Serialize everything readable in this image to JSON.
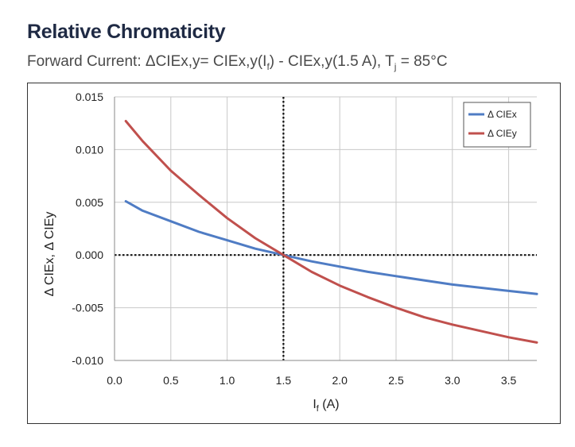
{
  "title": "Relative Chromaticity",
  "subtitle": {
    "part1": "Forward Current: ΔCIEx,y= CIEx,y(I",
    "sub1": "f",
    "part2": ") - CIEx,y(1.5 A), T",
    "sub2": "j",
    "part3": " = 85°C"
  },
  "chart_data": {
    "type": "line",
    "xlabel_main": "I",
    "xlabel_sub": "f",
    "xlabel_rest": " (A)",
    "ylabel": "Δ CIEx, Δ CIEy",
    "xlim": [
      0,
      3.75
    ],
    "ylim": [
      -0.01,
      0.015
    ],
    "xticks": [
      "0.0",
      "0.5",
      "1.0",
      "1.5",
      "2.0",
      "2.5",
      "3.0",
      "3.5"
    ],
    "yticks": [
      "0.015",
      "0.010",
      "0.005",
      "0.000",
      "-0.005",
      "-0.010"
    ],
    "grid": true,
    "legend_position": "top-right",
    "reference_lines": {
      "x": 1.5,
      "y": 0
    },
    "series": [
      {
        "name": "Δ CIEx",
        "color": "#4f7cc4",
        "x": [
          0.1,
          0.25,
          0.5,
          0.75,
          1.0,
          1.25,
          1.5,
          1.75,
          2.0,
          2.25,
          2.5,
          2.75,
          3.0,
          3.25,
          3.5,
          3.75
        ],
        "y": [
          0.0051,
          0.0042,
          0.0032,
          0.0022,
          0.0014,
          0.0006,
          0.0,
          -0.0006,
          -0.0011,
          -0.0016,
          -0.002,
          -0.0024,
          -0.0028,
          -0.0031,
          -0.0034,
          -0.0037
        ]
      },
      {
        "name": "Δ CIEy",
        "color": "#c0504d",
        "x": [
          0.1,
          0.25,
          0.5,
          0.75,
          1.0,
          1.25,
          1.5,
          1.75,
          2.0,
          2.25,
          2.5,
          2.75,
          3.0,
          3.25,
          3.5,
          3.75
        ],
        "y": [
          0.0127,
          0.0108,
          0.008,
          0.0057,
          0.0035,
          0.0016,
          0.0,
          -0.0016,
          -0.0029,
          -0.004,
          -0.005,
          -0.0059,
          -0.0066,
          -0.0072,
          -0.0078,
          -0.0083
        ]
      }
    ]
  }
}
